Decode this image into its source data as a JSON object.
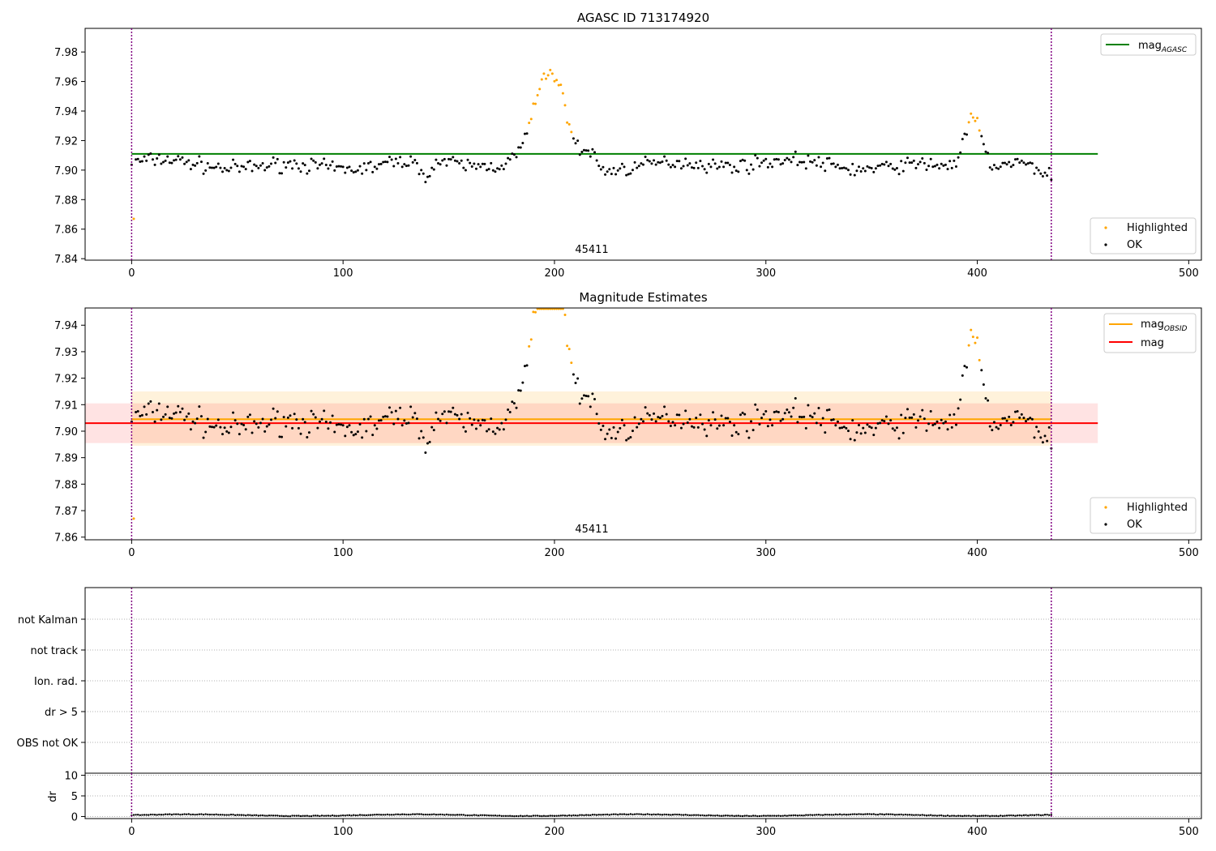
{
  "chart_data": [
    {
      "type": "scatter",
      "title": "AGASC ID 713174920",
      "xlabel": "",
      "ylabel": "",
      "xlim": [
        -22,
        506
      ],
      "ylim": [
        7.839,
        7.996
      ],
      "xticks": [
        0,
        100,
        200,
        300,
        400,
        500
      ],
      "yticks": [
        7.84,
        7.86,
        7.88,
        7.9,
        7.92,
        7.94,
        7.96,
        7.98
      ],
      "ytick_labels": [
        "7.84",
        "7.86",
        "7.88",
        "7.90",
        "7.92",
        "7.94",
        "7.96",
        "7.98"
      ],
      "annotation": "45411",
      "vlines": [
        0,
        435
      ],
      "hlines": [
        {
          "name": "mag_AGASC",
          "value": 7.911,
          "x_end": 457,
          "color": "#008000"
        }
      ],
      "legend_upper": [
        {
          "label": "mag",
          "sub": "AGASC",
          "color": "#008000"
        }
      ],
      "legend_lower": [
        {
          "label": "Highlighted",
          "color": "#ffa500"
        },
        {
          "label": "OK",
          "color": "#000000"
        }
      ],
      "series": [
        {
          "name": "OK",
          "color": "#000000",
          "description": "per-observation magnitude estimates, ~7.89–7.92 around baseline 7.905"
        },
        {
          "name": "Highlighted",
          "color": "#ffa500",
          "description": "outlier points: x≈0 (7.867), x≈183–218 peak to 7.965, x≈392–405 peak to 7.939"
        }
      ]
    },
    {
      "type": "scatter",
      "title": "Magnitude Estimates",
      "xlabel": "",
      "ylabel": "",
      "xlim": [
        -22,
        506
      ],
      "ylim": [
        7.859,
        7.9465
      ],
      "xticks": [
        0,
        100,
        200,
        300,
        400,
        500
      ],
      "yticks": [
        7.86,
        7.87,
        7.88,
        7.89,
        7.9,
        7.91,
        7.92,
        7.93,
        7.94
      ],
      "ytick_labels": [
        "7.86",
        "7.87",
        "7.88",
        "7.89",
        "7.90",
        "7.91",
        "7.92",
        "7.93",
        "7.94"
      ],
      "annotation": "45411",
      "vlines": [
        0,
        435
      ],
      "hlines": [
        {
          "name": "mag_OBSID",
          "value": 7.9045,
          "x_end": 435,
          "color": "#ffa500",
          "band": [
            7.8945,
            7.915
          ]
        },
        {
          "name": "mag",
          "value": 7.903,
          "x_end": 457,
          "color": "#ff0000",
          "band": [
            7.8955,
            7.9105
          ]
        }
      ],
      "legend_upper": [
        {
          "label": "mag",
          "sub": "OBSID",
          "color": "#ffa500"
        },
        {
          "label": "mag",
          "sub": "",
          "color": "#ff0000"
        }
      ],
      "legend_lower": [
        {
          "label": "Highlighted",
          "color": "#ffa500"
        },
        {
          "label": "OK",
          "color": "#000000"
        }
      ]
    },
    {
      "type": "scatter",
      "title": "",
      "categories": [
        "not Kalman",
        "not track",
        "Ion. rad.",
        "dr > 5",
        "OBS not OK"
      ],
      "xlim": [
        -22,
        506
      ],
      "vlines": [
        0,
        435
      ],
      "grid": true
    },
    {
      "type": "scatter",
      "title": "",
      "ylabel": "dr",
      "xlim": [
        -22,
        506
      ],
      "ylim": [
        -0.5,
        10.5
      ],
      "xticks": [
        0,
        100,
        200,
        300,
        400,
        500
      ],
      "yticks": [
        0,
        5,
        10
      ],
      "ytick_labels": [
        "0",
        "5",
        "10"
      ],
      "vlines": [
        0,
        435
      ],
      "series": [
        {
          "name": "dr",
          "color": "#000000",
          "description": "small values 0–0.8 for every observation"
        }
      ]
    }
  ]
}
